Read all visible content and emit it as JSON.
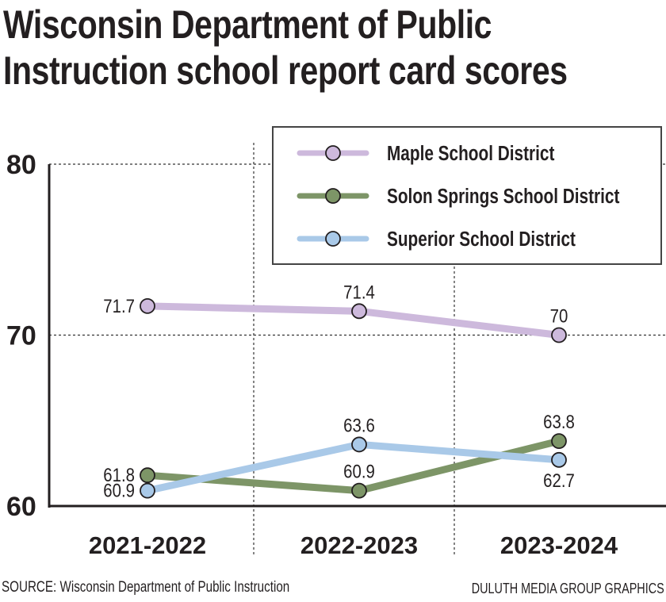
{
  "chart_data": {
    "type": "line",
    "title": "Wisconsin Department of Public Instruction school report card scores",
    "title_lines": [
      "Wisconsin Department of Public",
      "Instruction school report card scores"
    ],
    "categories": [
      "2021-2022",
      "2022-2023",
      "2023-2024"
    ],
    "ylim": [
      60,
      80
    ],
    "yticks": [
      "60",
      "70",
      "80"
    ],
    "grid": "dotted at 70, 80 and between categories",
    "legend_position": "top-right",
    "series": [
      {
        "name": "Maple School District",
        "values": [
          71.7,
          71.4,
          70
        ],
        "labels": [
          "71.7",
          "71.4",
          "70"
        ],
        "color": "#cdb9dc"
      },
      {
        "name": "Solon Springs School District",
        "values": [
          61.8,
          60.9,
          63.8
        ],
        "labels": [
          "61.8",
          "60.9",
          "63.8"
        ],
        "color": "#7d9567"
      },
      {
        "name": "Superior School District",
        "values": [
          60.9,
          63.6,
          62.7
        ],
        "labels": [
          "60.9",
          "63.6",
          "62.7"
        ],
        "color": "#a9c9e8"
      }
    ]
  },
  "footer": {
    "source": "SOURCE: Wisconsin Department of Public Instruction",
    "credit": "DULUTH MEDIA GROUP GRAPHICS"
  }
}
